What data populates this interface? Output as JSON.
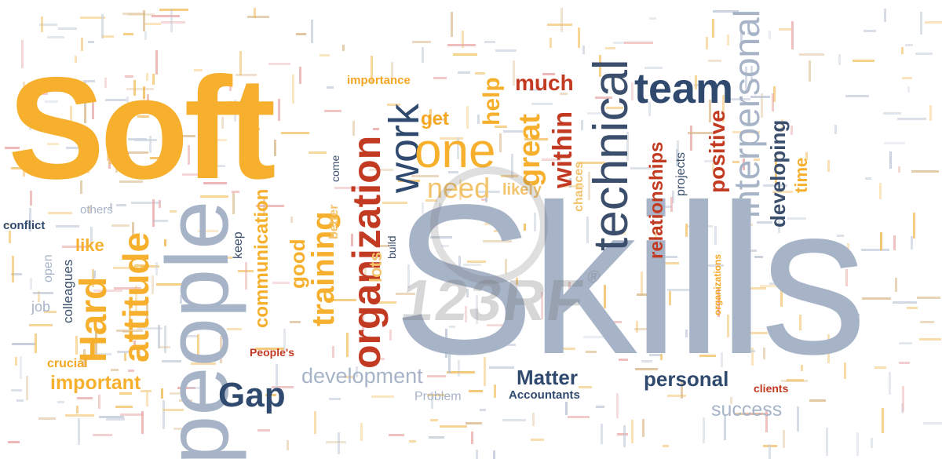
{
  "palette": {
    "orange": "#f5a623",
    "red": "#c23a21",
    "navy": "#2f4a6e",
    "gray": "#9aa8bd",
    "light": "#e6c28a"
  },
  "words": {
    "soft": "Soft",
    "skills": "Skills",
    "people": "people",
    "technical": "technical",
    "team": "team",
    "interpersonal": "interpersonal",
    "organization": "organization",
    "work": "work",
    "one": "one",
    "need": "need",
    "get": "get",
    "help": "help",
    "much": "much",
    "great": "great",
    "within": "within",
    "likely": "likely",
    "importance": "importance",
    "positive": "positive",
    "relationships": "relationships",
    "developing": "developing",
    "time": "time",
    "projects": "projects",
    "chances": "chances",
    "hard": "Hard",
    "attitude": "attitude",
    "training": "training",
    "communication": "communication",
    "good": "good",
    "keep": "keep",
    "better": "better",
    "come": "come",
    "lots": "lots",
    "build": "build",
    "like": "like",
    "others": "others",
    "conflict": "conflict",
    "colleagues": "colleagues",
    "open": "open",
    "job": "job",
    "crucial": "crucial",
    "important": "important",
    "gap": "Gap",
    "peoples": "People's",
    "development": "development",
    "problem": "Problem",
    "matter": "Matter",
    "accountants": "Accountants",
    "personal": "personal",
    "clients": "clients",
    "success": "success",
    "organizations": "organizations"
  },
  "watermark": {
    "text": "123RF",
    "mark": "®"
  }
}
